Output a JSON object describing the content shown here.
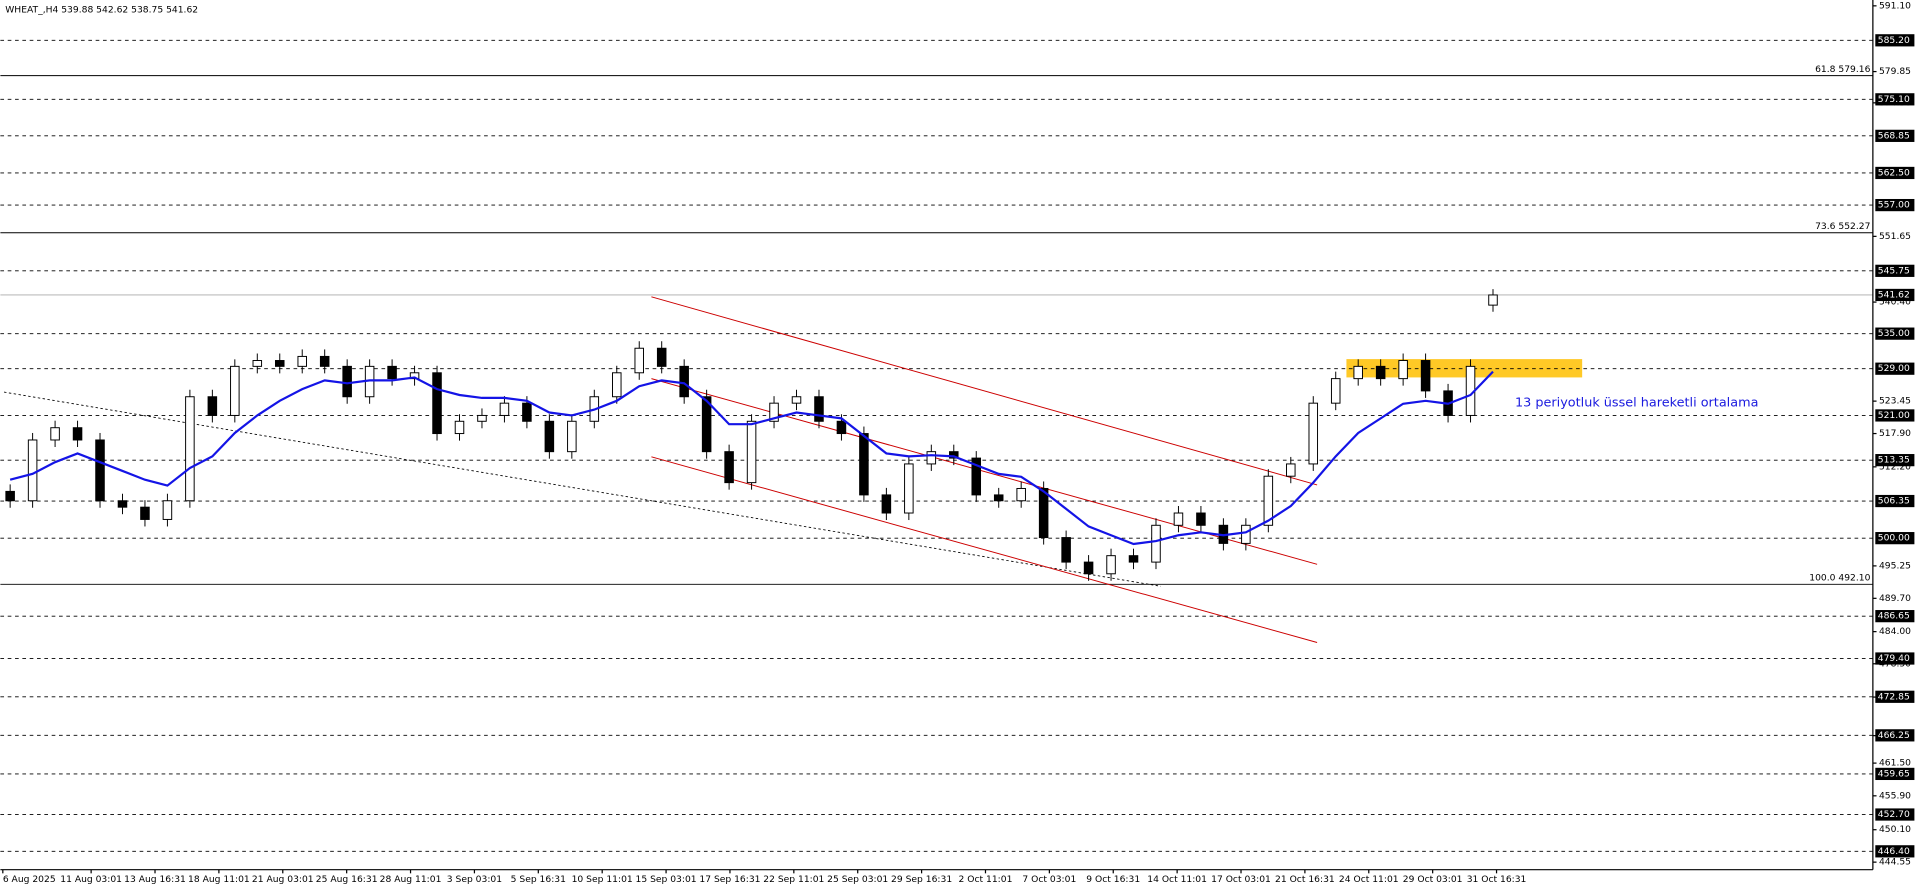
{
  "chart_data": {
    "type": "candlestick",
    "title": "WHEAT_,H4  539.88 542.62 538.75 541.62",
    "annotation": "13 periyotluk üssel hareketli ortalama",
    "open": [
      508,
      506.4,
      516.8,
      518.9,
      516.8,
      506.4,
      505.3,
      503.2,
      506.4,
      524.2,
      521,
      529.4,
      530.4,
      529.4,
      531.1,
      529.4,
      524.2,
      529.4,
      527.3,
      528.3,
      517.9,
      520,
      521,
      523.1,
      520,
      514.8,
      520,
      524.2,
      528.3,
      532.5,
      529.4,
      524.2,
      514.8,
      509.5,
      520,
      523.1,
      524.2,
      520,
      517.9,
      507.4,
      504.3,
      512.7,
      514.8,
      513.7,
      507.4,
      506.4,
      508.5,
      500.1,
      495.9,
      493.9,
      497,
      495.9,
      502.2,
      504.3,
      502.2,
      499.1,
      502.2,
      510.6,
      512.7,
      523.1,
      527.3,
      529.4,
      527.3,
      530.4,
      525.2,
      521,
      539.88
    ],
    "high": [
      509.2,
      518,
      520.1,
      520.1,
      518,
      507.6,
      506.5,
      507.6,
      525.4,
      525.4,
      530.6,
      531.6,
      531.6,
      532.3,
      532.3,
      530.6,
      530.6,
      530.6,
      529.5,
      529.5,
      521.2,
      522.2,
      524.3,
      524.3,
      521.2,
      521.2,
      525.4,
      529.5,
      533.7,
      533.7,
      530.6,
      525.4,
      516,
      521.2,
      524.3,
      525.4,
      525.4,
      521.2,
      519.1,
      508.6,
      513.9,
      516,
      516,
      514.9,
      508.6,
      509.7,
      509.7,
      501.3,
      497.1,
      498.2,
      498.2,
      503.4,
      505.5,
      505.5,
      503.4,
      503.4,
      511.8,
      513.9,
      524.3,
      528.5,
      530.6,
      530.6,
      531.6,
      531.6,
      526.4,
      530.6,
      542.62
    ],
    "low": [
      505.2,
      505.2,
      515.6,
      515.6,
      505.2,
      504.1,
      502,
      502,
      505.2,
      519.8,
      519.8,
      528.2,
      528.2,
      528.2,
      528.2,
      523,
      523,
      526.1,
      526.1,
      516.7,
      516.7,
      518.8,
      519.8,
      518.8,
      513.6,
      513.6,
      518.8,
      523,
      527.1,
      528.2,
      523,
      513.6,
      508.3,
      508.3,
      518.8,
      521.9,
      518.8,
      516.7,
      506.2,
      503.1,
      503.1,
      511.5,
      512.5,
      506.2,
      505.2,
      505.2,
      498.9,
      494.7,
      492.7,
      492.7,
      494.7,
      494.7,
      501,
      501,
      497.9,
      497.9,
      501,
      509.4,
      511.5,
      521.9,
      526.1,
      526.1,
      526.1,
      524,
      519.8,
      519.8,
      538.75
    ],
    "close": [
      506.4,
      516.8,
      518.9,
      516.8,
      506.4,
      505.3,
      503.2,
      506.4,
      524.2,
      521,
      529.4,
      530.4,
      529.4,
      531.1,
      529.4,
      524.2,
      529.4,
      527.3,
      528.3,
      517.9,
      520,
      521,
      523.1,
      520,
      514.8,
      520,
      524.2,
      528.3,
      532.5,
      529.4,
      524.2,
      514.8,
      509.5,
      520,
      523.1,
      524.2,
      520,
      517.9,
      507.4,
      504.3,
      512.7,
      514.8,
      513.7,
      507.4,
      506.4,
      508.5,
      500.1,
      495.9,
      493.9,
      497,
      495.9,
      502.2,
      504.3,
      502.2,
      499.1,
      502.2,
      510.6,
      512.7,
      523.1,
      527.3,
      529.4,
      527.3,
      530.4,
      525.2,
      521,
      529.4,
      541.62
    ],
    "ema": {
      "color": "#1414e6",
      "values": [
        510,
        511,
        513,
        514.5,
        513,
        511.5,
        510,
        509,
        512,
        514,
        518,
        521,
        523.5,
        525.5,
        527,
        526.5,
        527,
        527,
        527.5,
        525.5,
        524.5,
        524,
        524,
        523.5,
        521.5,
        521,
        522,
        523.5,
        526,
        527,
        526.5,
        523.5,
        519.5,
        519.5,
        520.5,
        521.5,
        521,
        520.5,
        517.5,
        514.5,
        514,
        514.2,
        514,
        512.5,
        511,
        510.5,
        508,
        505,
        502,
        500.5,
        499,
        499.5,
        500.5,
        501,
        500.5,
        501,
        503,
        505.5,
        509.5,
        514,
        518,
        520.5,
        523,
        523.5,
        523,
        524.5,
        528.5
      ]
    },
    "ylim": [
      443.26,
      592.1
    ],
    "yticks": [
      {
        "value": 591.1,
        "label": "591.10"
      },
      579.85,
      {
        "value": 574.5,
        "label": "574.50"
      },
      551.65,
      {
        "value": 540.4,
        "label": "540.40"
      },
      523.45,
      {
        "value": 517.9,
        "label": "517.90"
      },
      {
        "value": 512.2,
        "label": "512.20"
      },
      495.25,
      {
        "value": 489.7,
        "label": "489.70"
      },
      {
        "value": 484,
        "label": "484.00"
      },
      {
        "value": 478.5,
        "label": "478.50"
      },
      {
        "value": 472.8,
        "label": "472.80"
      },
      {
        "value": 466.2,
        "label": "466.20"
      },
      {
        "value": 461.5,
        "label": "461.50"
      },
      {
        "value": 455.9,
        "label": "455.90"
      },
      {
        "value": 450.1,
        "label": "450.10"
      },
      444.55
    ],
    "levels": [
      {
        "value": 585.2,
        "label": "585.20"
      },
      {
        "value": 575.1,
        "label": "575.10"
      },
      568.85,
      {
        "value": 562.5,
        "label": "562.50"
      },
      {
        "value": 557,
        "label": "557.00"
      },
      545.75,
      {
        "value": 535,
        "label": "535.00"
      },
      {
        "value": 529,
        "label": "529.00"
      },
      {
        "value": 521,
        "label": "521.00"
      },
      513.35,
      506.35,
      {
        "value": 500,
        "label": "500.00"
      },
      486.65,
      {
        "value": 479.4,
        "label": "479.40"
      },
      472.85,
      466.25,
      459.65,
      {
        "value": 452.7,
        "label": "452.70"
      },
      {
        "value": 446.4,
        "label": "446.40"
      }
    ],
    "fib_levels": [
      {
        "value": 579.16,
        "label": "61.8 579.16"
      },
      {
        "value": 552.27,
        "label": "73.6 552.27"
      },
      {
        "value": 492.1,
        "label": "100.0 492.10"
      }
    ],
    "price_line": 541.62,
    "xtick_labels": [
      "6 Aug 2025",
      "11 Aug 03:01",
      "13 Aug 16:31",
      "18 Aug 11:01",
      "21 Aug 03:01",
      "25 Aug 16:31",
      "28 Aug 11:01",
      "3 Sep 03:01",
      "5 Sep 16:31",
      "10 Sep 11:01",
      "15 Sep 03:01",
      "17 Sep 16:31",
      "22 Sep 11:01",
      "25 Sep 03:01",
      "29 Sep 16:31",
      "2 Oct 11:01",
      "7 Oct 03:01",
      "9 Oct 16:31",
      "14 Oct 11:01",
      "17 Oct 03:01",
      "21 Oct 16:31",
      "24 Oct 11:01",
      "29 Oct 03:01",
      "31 Oct 16:31"
    ]
  }
}
